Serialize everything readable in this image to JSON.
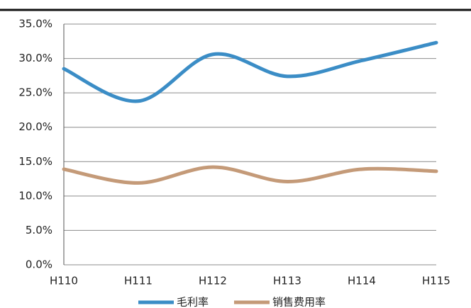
{
  "chart_data": {
    "type": "line",
    "categories": [
      "H110",
      "H111",
      "H112",
      "H113",
      "H114",
      "H115"
    ],
    "series": [
      {
        "name": "毛利率",
        "color": "#3b8dc6",
        "values": [
          28.5,
          23.8,
          30.6,
          27.4,
          29.7,
          32.3
        ]
      },
      {
        "name": "销售费用率",
        "color": "#c49a78",
        "values": [
          13.9,
          11.9,
          14.2,
          12.1,
          13.9,
          13.6
        ]
      }
    ],
    "ylim": [
      0,
      35
    ],
    "yticks": [
      {
        "value": 0,
        "label": "0.0%"
      },
      {
        "value": 5,
        "label": "5.0%"
      },
      {
        "value": 10,
        "label": "10.0%"
      },
      {
        "value": 15,
        "label": "15.0%"
      },
      {
        "value": 20,
        "label": "20.0%"
      },
      {
        "value": 25,
        "label": "25.0%"
      },
      {
        "value": 30,
        "label": "30.0%"
      },
      {
        "value": 35,
        "label": "35.0%"
      }
    ],
    "grid": true,
    "smooth": true,
    "legend": "bottom"
  }
}
